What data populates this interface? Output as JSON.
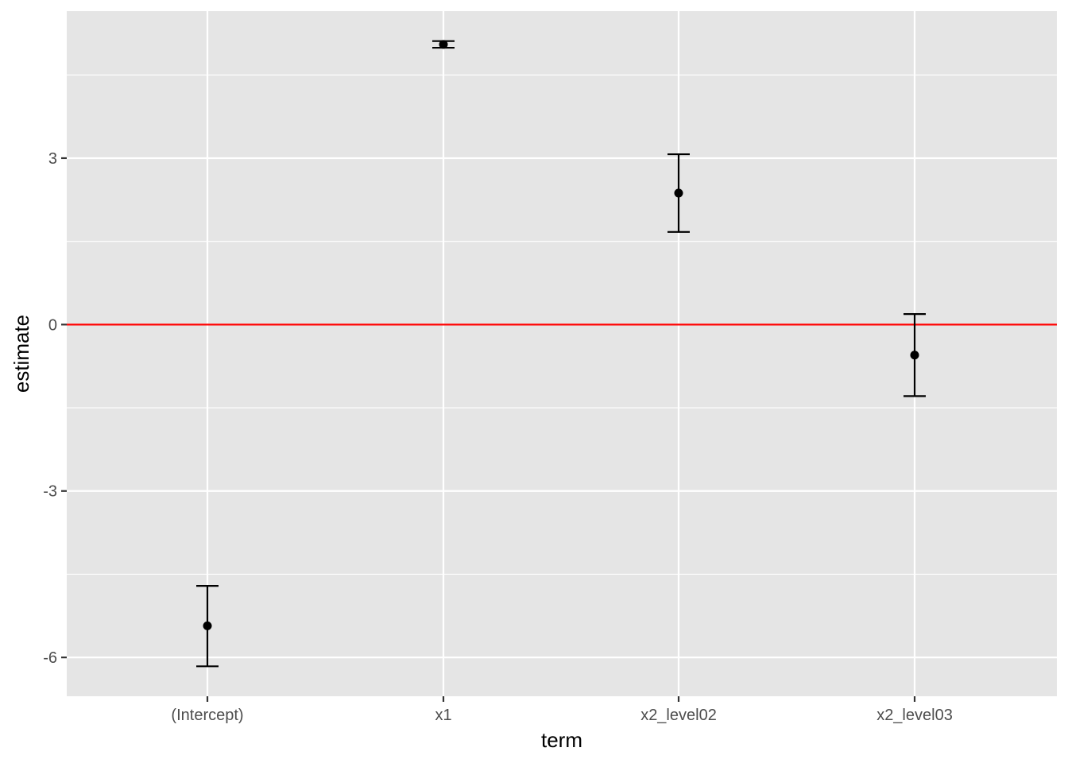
{
  "chart_data": {
    "type": "scatter",
    "title": "",
    "xlabel": "term",
    "ylabel": "estimate",
    "categories": [
      "(Intercept)",
      "x1",
      "x2_level02",
      "x2_level03"
    ],
    "series": [
      {
        "estimates": [
          -5.43,
          5.05,
          2.37,
          -0.55
        ],
        "conf_low": [
          -6.16,
          4.99,
          1.67,
          -1.29
        ],
        "conf_high": [
          -4.71,
          5.11,
          3.07,
          0.19
        ]
      }
    ],
    "ylim": [
      -6.7,
      5.65
    ],
    "yticks": [
      -6,
      -3,
      0,
      3
    ],
    "ytick_labels": [
      "-6",
      "-3",
      "0",
      "3"
    ],
    "reference_line": {
      "y": 0,
      "color": "#ff0000"
    },
    "grid": true,
    "legend": "none",
    "colors": {
      "panel_background": "#e5e5e5",
      "grid_line": "#ffffff",
      "point": "#000000",
      "errorbar": "#000000",
      "tick_label": "#4d4d4d",
      "axis_title": "#000000"
    }
  }
}
